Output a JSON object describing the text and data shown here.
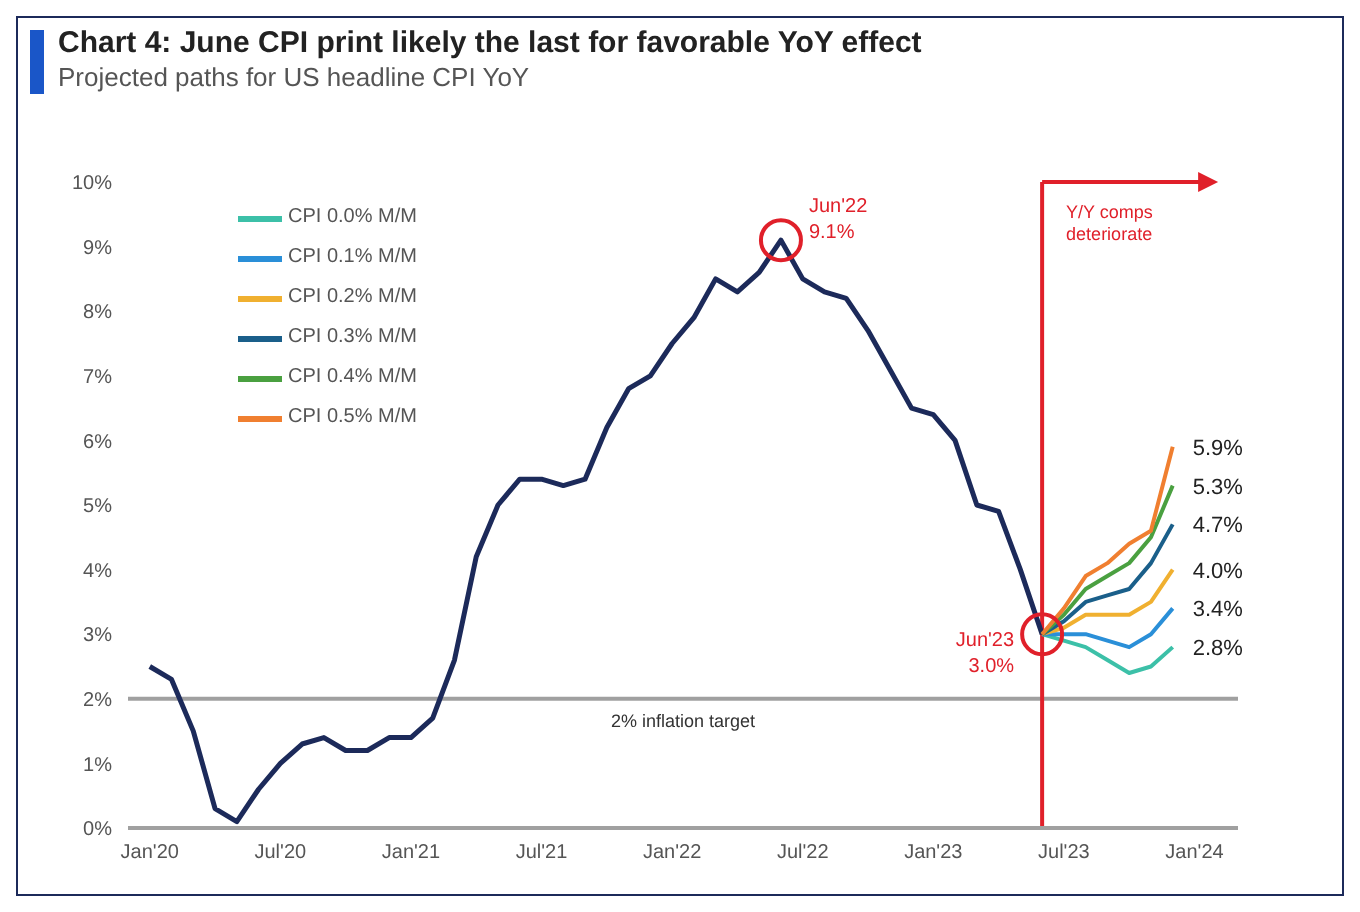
{
  "chart_data": {
    "type": "line",
    "title": "Chart 4: June CPI print likely the last for favorable YoY effect",
    "subtitle": "Projected paths for US headline CPI YoY",
    "x": [
      "2020-01",
      "2020-02",
      "2020-03",
      "2020-04",
      "2020-05",
      "2020-06",
      "2020-07",
      "2020-08",
      "2020-09",
      "2020-10",
      "2020-11",
      "2020-12",
      "2021-01",
      "2021-02",
      "2021-03",
      "2021-04",
      "2021-05",
      "2021-06",
      "2021-07",
      "2021-08",
      "2021-09",
      "2021-10",
      "2021-11",
      "2021-12",
      "2022-01",
      "2022-02",
      "2022-03",
      "2022-04",
      "2022-05",
      "2022-06",
      "2022-07",
      "2022-08",
      "2022-09",
      "2022-10",
      "2022-11",
      "2022-12",
      "2023-01",
      "2023-02",
      "2023-03",
      "2023-04",
      "2023-05",
      "2023-06"
    ],
    "series": [
      {
        "color": "#1c2a5a",
        "values": [
          2.5,
          2.3,
          1.5,
          0.3,
          0.1,
          0.6,
          1.0,
          1.3,
          1.4,
          1.2,
          1.2,
          1.4,
          1.4,
          1.7,
          2.6,
          4.2,
          5.0,
          5.4,
          5.4,
          5.3,
          5.4,
          6.2,
          6.8,
          7.0,
          7.5,
          7.9,
          8.5,
          8.3,
          8.6,
          9.1,
          8.5,
          8.3,
          8.2,
          7.7,
          7.1,
          6.5,
          6.4,
          6.0,
          5.0,
          4.9,
          4.0,
          3.0
        ]
      },
      {
        "name": "CPI 0.0% M/M",
        "color": "#3cc0a8",
        "x": [
          "2023-06",
          "2023-07",
          "2023-08",
          "2023-09",
          "2023-10",
          "2023-11",
          "2023-12"
        ],
        "values": [
          3.0,
          2.9,
          2.8,
          2.6,
          2.4,
          2.5,
          2.8
        ],
        "value_labels": [
          null,
          null,
          null,
          null,
          null,
          null,
          "2.8%"
        ]
      },
      {
        "name": "CPI 0.1% M/M",
        "color": "#2a8fd8",
        "x": [
          "2023-06",
          "2023-07",
          "2023-08",
          "2023-09",
          "2023-10",
          "2023-11",
          "2023-12"
        ],
        "values": [
          3.0,
          3.0,
          3.0,
          2.9,
          2.8,
          3.0,
          3.4
        ],
        "value_labels": [
          null,
          null,
          null,
          null,
          null,
          null,
          "3.4%"
        ]
      },
      {
        "name": "CPI 0.2% M/M",
        "color": "#f0b030",
        "x": [
          "2023-06",
          "2023-07",
          "2023-08",
          "2023-09",
          "2023-10",
          "2023-11",
          "2023-12"
        ],
        "values": [
          3.0,
          3.1,
          3.3,
          3.3,
          3.3,
          3.5,
          4.0
        ],
        "value_labels": [
          null,
          null,
          null,
          null,
          null,
          null,
          "4.0%"
        ]
      },
      {
        "name": "CPI 0.3% M/M",
        "color": "#1a5f8a",
        "x": [
          "2023-06",
          "2023-07",
          "2023-08",
          "2023-09",
          "2023-10",
          "2023-11",
          "2023-12"
        ],
        "values": [
          3.0,
          3.2,
          3.5,
          3.6,
          3.7,
          4.1,
          4.7
        ],
        "value_labels": [
          null,
          null,
          null,
          null,
          null,
          null,
          "4.7%"
        ]
      },
      {
        "name": "CPI 0.4% M/M",
        "color": "#4aa040",
        "x": [
          "2023-06",
          "2023-07",
          "2023-08",
          "2023-09",
          "2023-10",
          "2023-11",
          "2023-12"
        ],
        "values": [
          3.0,
          3.3,
          3.7,
          3.9,
          4.1,
          4.5,
          5.3
        ],
        "value_labels": [
          null,
          null,
          null,
          null,
          null,
          null,
          "5.3%"
        ]
      },
      {
        "name": "CPI 0.5% M/M",
        "color": "#f07f30",
        "x": [
          "2023-06",
          "2023-07",
          "2023-08",
          "2023-09",
          "2023-10",
          "2023-11",
          "2023-12"
        ],
        "values": [
          3.0,
          3.4,
          3.9,
          4.1,
          4.4,
          4.6,
          5.9
        ],
        "value_labels": [
          null,
          null,
          null,
          null,
          null,
          null,
          "5.9%"
        ]
      }
    ],
    "xlim": [
      "2019-12",
      "2024-03"
    ],
    "xticks": [
      {
        "value": "2020-01",
        "label": "Jan'20"
      },
      {
        "value": "2020-07",
        "label": "Jul'20"
      },
      {
        "value": "2021-01",
        "label": "Jan'21"
      },
      {
        "value": "2021-07",
        "label": "Jul'21"
      },
      {
        "value": "2022-01",
        "label": "Jan'22"
      },
      {
        "value": "2022-07",
        "label": "Jul'22"
      },
      {
        "value": "2023-01",
        "label": "Jan'23"
      },
      {
        "value": "2023-07",
        "label": "Jul'23"
      },
      {
        "value": "2024-01",
        "label": "Jan'24"
      }
    ],
    "ylim": [
      0,
      10
    ],
    "yticks": [
      {
        "value": 0,
        "label": "0%"
      },
      {
        "value": 1,
        "label": "1%"
      },
      {
        "value": 2,
        "label": "2%"
      },
      {
        "value": 3,
        "label": "3%"
      },
      {
        "value": 4,
        "label": "4%"
      },
      {
        "value": 5,
        "label": "5%"
      },
      {
        "value": 6,
        "label": "6%"
      },
      {
        "value": 7,
        "label": "7%"
      },
      {
        "value": 8,
        "label": "8%"
      },
      {
        "value": 9,
        "label": "9%"
      },
      {
        "value": 10,
        "label": "10%"
      }
    ],
    "ref_lines": [
      {
        "axis": "y",
        "value": 2,
        "label": "2% inflation target",
        "color": "#a0a0a0"
      },
      {
        "axis": "x",
        "value": "2023-06",
        "label": "Y/Y comps deteriorate",
        "color": "#e0202a"
      }
    ],
    "annotations": [
      {
        "text": "Jun'22\n9.1%",
        "x": "2022-06",
        "y": 9.1
      },
      {
        "text": "Jun'23\n3.0%",
        "x": "2023-06",
        "y": 3.0
      }
    ],
    "legend": "top left",
    "grid": false
  }
}
